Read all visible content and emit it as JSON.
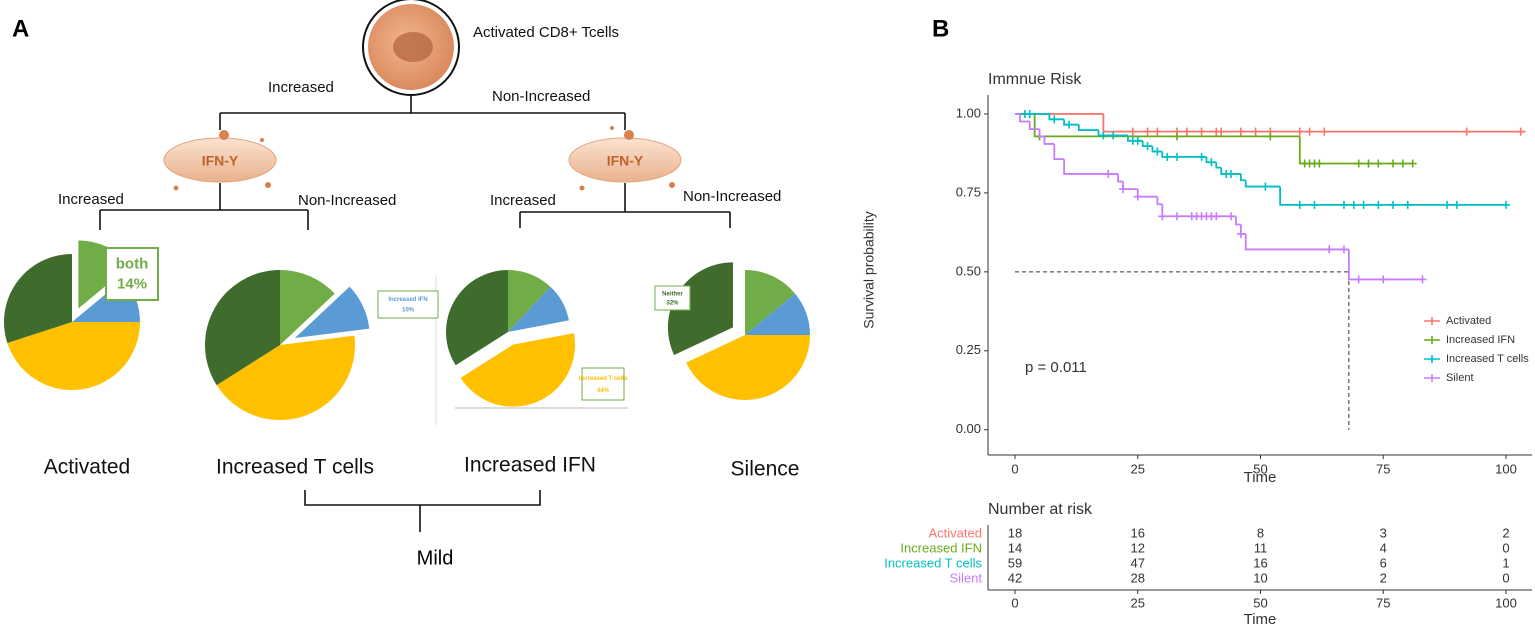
{
  "diagram": {
    "panel_labels": [
      "A",
      "B"
    ],
    "root": "Activated CD8+ Tcells",
    "level1": [
      "Increased",
      "Non-Increased"
    ],
    "ifn_label": "IFN-Y",
    "level2": [
      "Increased",
      "Non-Increased",
      "Increased",
      "Non-Increased"
    ],
    "group": "Mild"
  },
  "chart_data": [
    {
      "type": "pie",
      "title": "Activated",
      "values": [
        14,
        11,
        45,
        30
      ],
      "colors": [
        "#70ad47",
        "#5b9bd5",
        "#ffc000",
        "#3f6b2d"
      ],
      "callout": {
        "index": 0,
        "label": "both",
        "value_label": "14%"
      }
    },
    {
      "type": "pie",
      "title": "Increased T cells",
      "values": [
        13,
        10,
        43,
        34
      ],
      "colors": [
        "#70ad47",
        "#5b9bd5",
        "#ffc000",
        "#3f6b2d"
      ],
      "callout": {
        "index": 1,
        "label": "Increased IFN",
        "value_label": "10%"
      }
    },
    {
      "type": "pie",
      "title": "Increased IFN",
      "values": [
        12,
        10,
        44,
        34
      ],
      "colors": [
        "#70ad47",
        "#5b9bd5",
        "#ffc000",
        "#3f6b2d"
      ],
      "callout": {
        "index": 2,
        "label": "Increased T cells",
        "value_label": "44%"
      }
    },
    {
      "type": "pie",
      "title": "Silence",
      "values": [
        14,
        11,
        43,
        32
      ],
      "colors": [
        "#70ad47",
        "#5b9bd5",
        "#ffc000",
        "#3f6b2d"
      ],
      "callout": {
        "index": 3,
        "label": "Neither",
        "value_label": "32%"
      }
    },
    {
      "type": "step",
      "title": "Immnue Risk",
      "xlabel": "Time",
      "ylabel": "Survival probability",
      "annotation": "p = 0.011",
      "xlim": [
        -5.5,
        105.3
      ],
      "ylim": [
        -0.08,
        1.06
      ],
      "xticks": [
        0,
        25,
        50,
        75,
        100
      ],
      "yticks": [
        {
          "value": 0,
          "label": "0.00"
        },
        0.25,
        {
          "value": 0.5,
          "label": "0.50"
        },
        0.75,
        {
          "value": 1,
          "label": "1.00"
        }
      ],
      "median": {
        "x": 68,
        "y": 0.5
      },
      "legend": "right",
      "series": [
        {
          "name": "Activated",
          "color": "#f8766d",
          "x": [
            0,
            18,
            104
          ],
          "values": [
            1,
            0.944,
            0.944
          ],
          "censored": [
            24,
            27,
            29,
            33,
            35,
            38,
            41,
            42,
            46,
            49,
            52,
            58,
            60,
            63,
            92,
            103
          ]
        },
        {
          "name": "Increased IFN",
          "color": "#6aaa1a",
          "x": [
            0,
            4,
            58,
            81
          ],
          "values": [
            1,
            0.929,
            0.843,
            0.843
          ],
          "censored": [
            5,
            33,
            52,
            59,
            60,
            61,
            62,
            70,
            72,
            74,
            77,
            79,
            81
          ]
        },
        {
          "name": "Increased T cells",
          "color": "#00bfc4",
          "x": [
            0,
            7,
            10,
            13,
            17,
            23,
            26,
            28,
            30,
            39,
            41,
            42,
            46,
            47,
            54,
            100
          ],
          "values": [
            1,
            0.983,
            0.966,
            0.949,
            0.932,
            0.915,
            0.898,
            0.881,
            0.864,
            0.847,
            0.83,
            0.81,
            0.79,
            0.77,
            0.712,
            0.712
          ],
          "censored": [
            2,
            3,
            8,
            11,
            18,
            20,
            24,
            25,
            27,
            29,
            31,
            33,
            38,
            40,
            43,
            44,
            51,
            58,
            61,
            67,
            69,
            71,
            74,
            77,
            80,
            88,
            90,
            100
          ]
        },
        {
          "name": "Silent",
          "color": "#c77cff",
          "x": [
            0,
            1,
            3,
            5,
            6,
            8,
            10,
            21,
            22,
            25,
            29,
            30,
            45,
            46,
            47,
            68,
            83
          ],
          "values": [
            1,
            0.976,
            0.952,
            0.929,
            0.905,
            0.857,
            0.81,
            0.786,
            0.762,
            0.738,
            0.714,
            0.676,
            0.65,
            0.62,
            0.571,
            0.476,
            0.476
          ],
          "censored": [
            19,
            22,
            25,
            30,
            33,
            36,
            37,
            38,
            39,
            40,
            41,
            44,
            46,
            64,
            67,
            70,
            75,
            83
          ]
        }
      ],
      "risk_table": {
        "title": "Number at risk",
        "xlabel": "Time",
        "times": [
          0,
          25,
          50,
          75,
          100
        ],
        "rows": [
          {
            "name": "Activated",
            "color": "#f8766d",
            "counts": [
              18,
              16,
              8,
              3,
              2
            ]
          },
          {
            "name": "Increased IFN",
            "color": "#6aaa1a",
            "counts": [
              14,
              12,
              11,
              4,
              0
            ]
          },
          {
            "name": "Increased T cells",
            "color": "#00bfc4",
            "counts": [
              59,
              47,
              16,
              6,
              1
            ]
          },
          {
            "name": "Silent",
            "color": "#c77cff",
            "counts": [
              42,
              28,
              10,
              2,
              0
            ]
          }
        ]
      }
    }
  ]
}
